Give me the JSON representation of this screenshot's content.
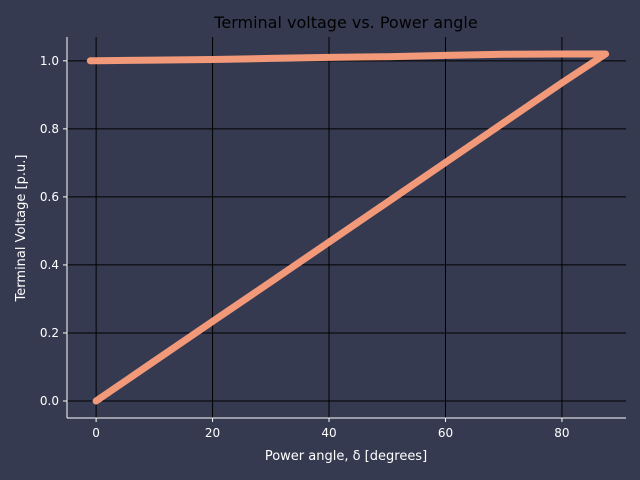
{
  "chart_data": {
    "type": "line",
    "title": "Terminal voltage vs. Power angle",
    "xlabel": "Power angle, δ [degrees]",
    "ylabel": "Terminal Voltage [p.u.]",
    "xlim": [
      -5,
      91
    ],
    "ylim": [
      -0.05,
      1.07
    ],
    "xticks": [
      0,
      20,
      40,
      60,
      80
    ],
    "yticks": [
      0.0,
      0.2,
      0.4,
      0.6,
      0.8,
      1.0
    ],
    "xtick_labels": [
      "0",
      "20",
      "40",
      "60",
      "80"
    ],
    "ytick_labels": [
      "0.0",
      "0.2",
      "0.4",
      "0.6",
      "0.8",
      "1.0"
    ],
    "grid": true,
    "series": [
      {
        "x": [
          0,
          10,
          20,
          30,
          40,
          50,
          60,
          70,
          80,
          87.5,
          87,
          80,
          70,
          60,
          50,
          40,
          30,
          20,
          10,
          0,
          -1
        ],
        "y": [
          0.0,
          0.117,
          0.234,
          0.35,
          0.467,
          0.584,
          0.701,
          0.818,
          0.935,
          1.02,
          1.02,
          1.02,
          1.019,
          1.016,
          1.012,
          1.01,
          1.007,
          1.004,
          1.002,
          1.0,
          1.0
        ],
        "color": "#f2997a"
      }
    ]
  },
  "colors": {
    "background": "#363a50",
    "grid": "#000000",
    "axis": "#ffffff",
    "line": "#f2997a"
  }
}
